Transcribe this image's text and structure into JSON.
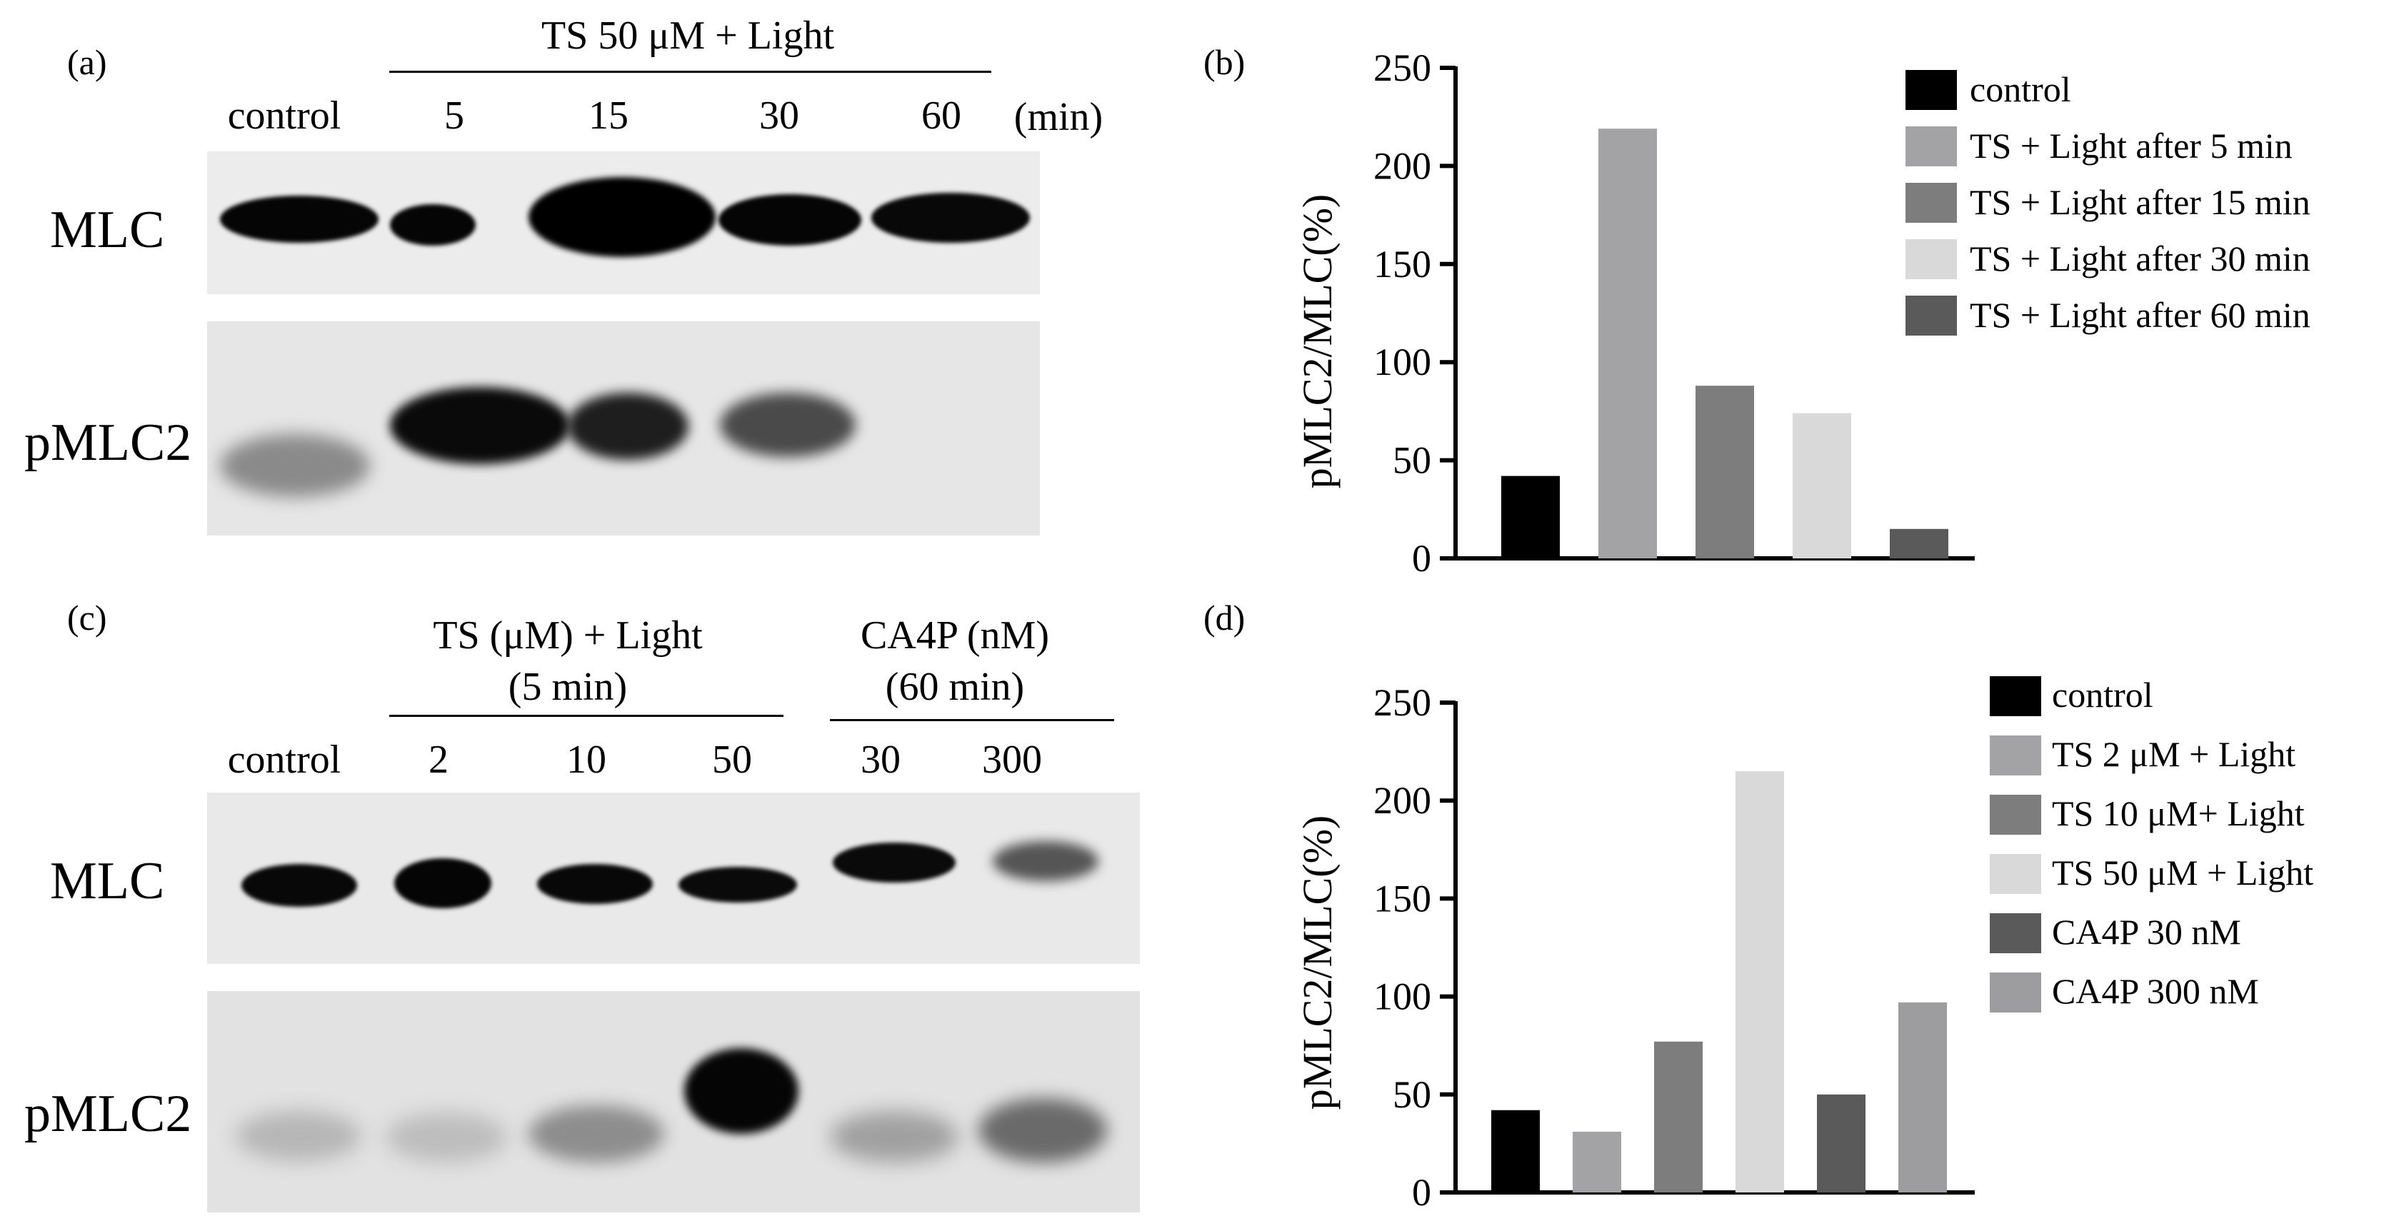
{
  "panel_a": {
    "label": "(a)",
    "treatment_header": "TS 50 μM + Light",
    "lanes": [
      "control",
      "5",
      "15",
      "30",
      "60"
    ],
    "unit": "(min)",
    "rows": [
      "MLC",
      "pMLC2"
    ]
  },
  "panel_c": {
    "label": "(c)",
    "group1_line1": "TS (μM) + Light",
    "group1_line2": "(5 min)",
    "group2_line1": "CA4P (nM)",
    "group2_line2": "(60 min)",
    "lanes": [
      "control",
      "2",
      "10",
      "50",
      "30",
      "300"
    ],
    "rows": [
      "MLC",
      "pMLC2"
    ]
  },
  "chart_data": [
    {
      "panel": "(b)",
      "type": "bar",
      "ylabel": "pMLC2/MLC(%)",
      "ylim": [
        0,
        250
      ],
      "yticks": [
        "0",
        "50",
        "100",
        "150",
        "200",
        "250"
      ],
      "categories": [
        "control",
        "TS + Light after 5 min",
        "TS + Light after 15 min",
        "TS + Light after 30 min",
        "TS + Light after 60 min"
      ],
      "values": [
        42,
        219,
        88,
        74,
        15
      ],
      "colors": [
        "#000000",
        "#a3a3a6",
        "#7d7d7d",
        "#d9d9d9",
        "#5a5a5a"
      ],
      "legend": "right"
    },
    {
      "panel": "(d)",
      "type": "bar",
      "ylabel": "pMLC2/MLC(%)",
      "ylim": [
        0,
        250
      ],
      "yticks": [
        "0",
        "50",
        "100",
        "150",
        "200",
        "250"
      ],
      "categories": [
        "control",
        "TS 2 μM + Light",
        "TS 10 μM+ Light",
        "TS 50 μM + Light",
        "CA4P 30 nM",
        "CA4P 300 nM"
      ],
      "values": [
        42,
        31,
        77,
        215,
        50,
        97
      ],
      "colors": [
        "#000000",
        "#a3a3a6",
        "#7d7d7d",
        "#d9d9d9",
        "#5a5a5a",
        "#9d9da0"
      ],
      "legend": "right"
    }
  ]
}
